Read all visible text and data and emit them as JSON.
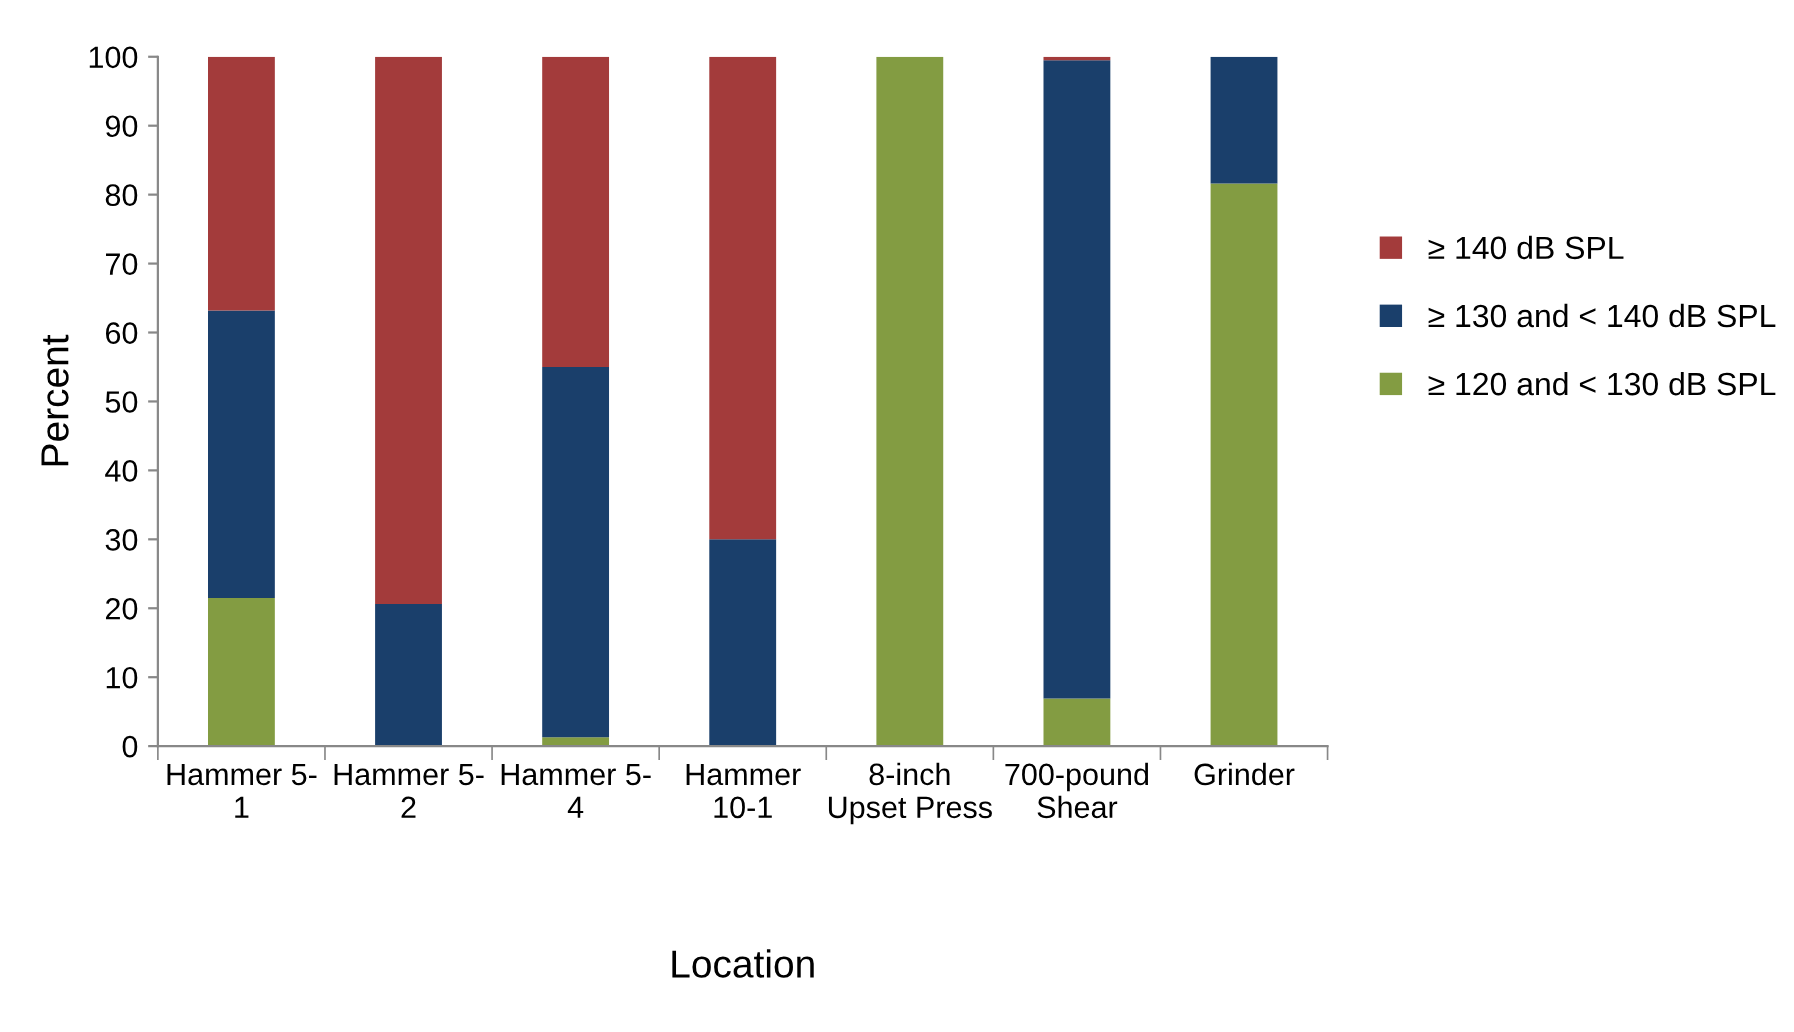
{
  "chart_data": {
    "type": "bar",
    "stacked": true,
    "xlabel": "Location",
    "ylabel": "Percent",
    "categories": [
      "Hammer 5-\n1",
      "Hammer 5-\n2",
      "Hammer 5-\n4",
      "Hammer\n10-1",
      "8-inch\nUpset Press",
      "700-pound\nShear",
      "Grinder"
    ],
    "series": [
      {
        "name": "≥ 120 and < 130 dB SPL",
        "color": "#839c42",
        "values": [
          21.5,
          0,
          1.3,
          0,
          100,
          6.9,
          81.6
        ]
      },
      {
        "name": "≥ 130 and < 140 dB SPL",
        "color": "#1a3f6b",
        "values": [
          41.7,
          20.6,
          53.7,
          30.0,
          0,
          92.6,
          18.4
        ]
      },
      {
        "name": "≥ 140 dB SPL",
        "color": "#a33b3b",
        "values": [
          36.8,
          79.4,
          45.0,
          70.0,
          0,
          0.5,
          0
        ]
      }
    ],
    "ylim": [
      0,
      100
    ],
    "yticks": [
      0,
      10,
      20,
      30,
      40,
      50,
      60,
      70,
      80,
      90,
      100
    ],
    "grid": false,
    "legend": "right"
  }
}
